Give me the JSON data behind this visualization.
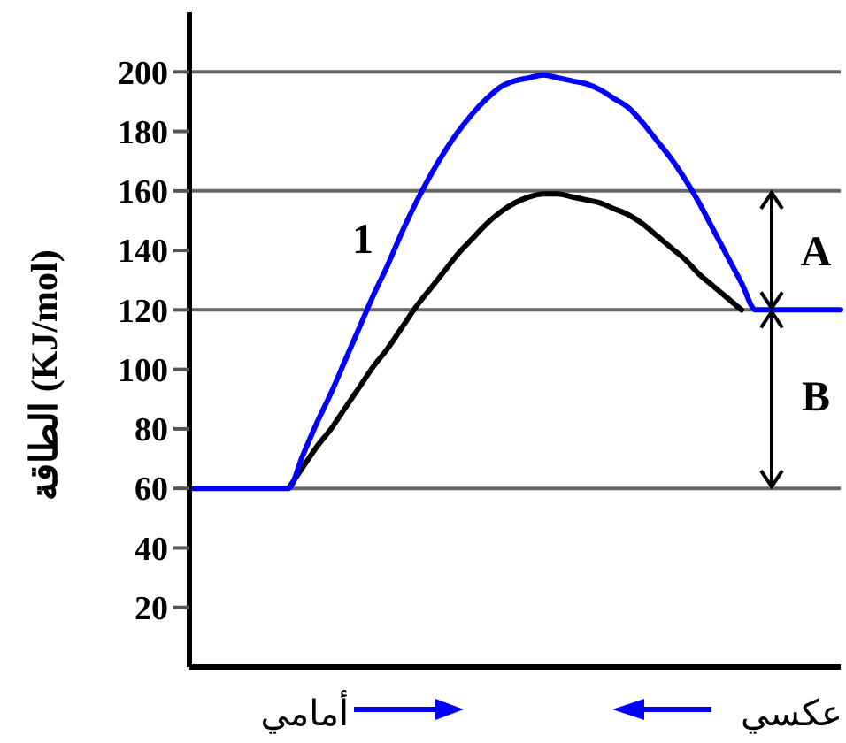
{
  "chart_data": {
    "type": "line",
    "ylabel": "الطاقة (KJ/mol)",
    "categories": [
      null,
      null,
      null,
      null,
      null,
      null,
      null,
      null,
      null,
      null,
      null,
      null,
      null,
      null,
      null,
      null,
      null,
      null,
      null,
      null,
      null,
      null,
      null,
      null,
      null,
      null,
      null,
      null,
      null,
      null,
      null,
      null,
      null,
      null,
      null,
      null,
      null,
      null,
      null,
      null,
      null,
      null,
      null,
      null,
      null,
      null,
      null
    ],
    "series": [
      {
        "color": "#000000",
        "values": [
          null,
          null,
          null,
          null,
          null,
          null,
          null,
          60,
          67,
          74,
          80,
          87,
          94,
          101,
          107,
          114,
          121,
          127,
          133,
          139,
          144,
          149,
          153,
          156,
          158,
          159,
          159,
          158,
          157,
          156,
          154,
          152,
          149,
          145,
          141,
          137,
          132,
          128,
          124,
          120,
          null,
          null,
          null,
          null,
          null,
          null,
          null
        ]
      },
      {
        "color": "#0000ff",
        "values": [
          60,
          60,
          60,
          60,
          60,
          60,
          60,
          60,
          71,
          82,
          92,
          103,
          114,
          125,
          135,
          146,
          156,
          165,
          173,
          180,
          186,
          191,
          195,
          197,
          198,
          199,
          198,
          197,
          196,
          194,
          191,
          188,
          183,
          177,
          171,
          164,
          156,
          147,
          138,
          129,
          120,
          120,
          120,
          120,
          120,
          120,
          120
        ]
      }
    ],
    "ylim": [
      0,
      220
    ],
    "yticks": [
      20,
      40,
      60,
      80,
      100,
      120,
      140,
      160,
      180,
      200
    ],
    "grid": false,
    "ref_lines": [
      {
        "axis": "y",
        "value": 60,
        "color": "#666666"
      },
      {
        "axis": "y",
        "value": 120,
        "color": "#666666"
      },
      {
        "axis": "y",
        "value": 160,
        "color": "#666666"
      },
      {
        "axis": "y",
        "value": 200,
        "color": "#666666"
      }
    ],
    "annotations": [
      "1",
      "A",
      "B",
      "أمامي",
      "عكسي"
    ],
    "tick_labels": "y",
    "line_style": "solid",
    "marker": "none"
  }
}
